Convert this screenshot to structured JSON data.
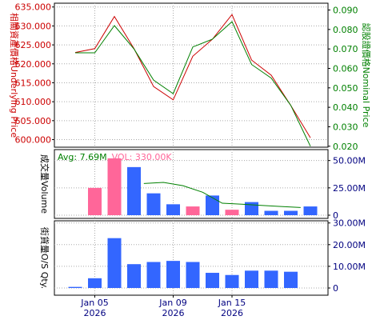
{
  "chart_data": [
    {
      "type": "line",
      "left_axis_label": "相關資產價格Underlying Price",
      "right_axis_label": "認股證價格Nominal Price",
      "left_ylim": [
        598,
        636
      ],
      "right_ylim": [
        0.0195,
        0.0935
      ],
      "left_ticks": [
        "635.000",
        "630.000",
        "625.000",
        "620.000",
        "615.000",
        "610.000",
        "605.000",
        "600.000"
      ],
      "left_tick_values": [
        635,
        630,
        625,
        620,
        615,
        610,
        605,
        600
      ],
      "right_ticks": [
        "0.090",
        "0.080",
        "0.070",
        "0.060",
        "0.050",
        "0.040",
        "0.030",
        "0.020"
      ],
      "right_tick_values": [
        0.09,
        0.08,
        0.07,
        0.06,
        0.05,
        0.04,
        0.03,
        0.02
      ],
      "grid": true,
      "series": [
        {
          "axis": "left",
          "color": "#cc0000",
          "values": [
            623,
            624,
            632.5,
            624,
            614,
            610.5,
            622,
            626.5,
            633,
            621,
            617,
            609,
            600.5
          ]
        },
        {
          "axis": "right",
          "color": "#008000",
          "values": [
            0.068,
            0.068,
            0.082,
            0.07,
            0.054,
            0.047,
            0.071,
            0.075,
            0.084,
            0.062,
            0.055,
            0.041,
            0.02
          ]
        }
      ]
    },
    {
      "type": "bar",
      "ylabel": "成交量Volume",
      "ylim": [
        0,
        60000000
      ],
      "right_ticks": [
        "50.00M",
        "25.00M",
        "0"
      ],
      "right_tick_values": [
        50000000,
        25000000,
        0
      ],
      "legend_avg": "Avg: 7.69M",
      "legend_vol": "VOL: 330.00K",
      "grid": true,
      "bars": [
        {
          "value": 25000000,
          "color": "#ff6699"
        },
        {
          "value": 52000000,
          "color": "#ff6699"
        },
        {
          "value": 44000000,
          "color": "#3366ff"
        },
        {
          "value": 20000000,
          "color": "#3366ff"
        },
        {
          "value": 10000000,
          "color": "#3366ff"
        },
        {
          "value": 8000000,
          "color": "#ff6699"
        },
        {
          "value": 18000000,
          "color": "#3366ff"
        },
        {
          "value": 5000000,
          "color": "#ff6699"
        },
        {
          "value": 12000000,
          "color": "#3366ff"
        },
        {
          "value": 4000000,
          "color": "#3366ff"
        },
        {
          "value": 4000000,
          "color": "#3366ff"
        },
        {
          "value": 8000000,
          "color": "#3366ff"
        }
      ],
      "avg_line": {
        "color": "#008000",
        "points": [
          [
            3.5,
            29000000
          ],
          [
            4.5,
            30000000
          ],
          [
            5.5,
            27000000
          ],
          [
            6.5,
            21000000
          ],
          [
            7.5,
            11000000
          ],
          [
            8.5,
            10000000
          ],
          [
            9.5,
            9000000
          ],
          [
            10.5,
            8000000
          ],
          [
            11.5,
            7000000
          ]
        ]
      }
    },
    {
      "type": "bar",
      "ylabel": "街貨量O/S Qty.",
      "ylim": [
        0,
        31000000
      ],
      "right_ticks": [
        "30.00M",
        "20.00M",
        "10.00M",
        "0"
      ],
      "right_tick_values": [
        30000000,
        20000000,
        10000000,
        0
      ],
      "grid": true,
      "bars": [
        {
          "value": 500000,
          "color": "#3366ff"
        },
        {
          "value": 4500000,
          "color": "#3366ff"
        },
        {
          "value": 23000000,
          "color": "#3366ff"
        },
        {
          "value": 11000000,
          "color": "#3366ff"
        },
        {
          "value": 12000000,
          "color": "#3366ff"
        },
        {
          "value": 12500000,
          "color": "#3366ff"
        },
        {
          "value": 12000000,
          "color": "#3366ff"
        },
        {
          "value": 7000000,
          "color": "#3366ff"
        },
        {
          "value": 6000000,
          "color": "#3366ff"
        },
        {
          "value": 8000000,
          "color": "#3366ff"
        },
        {
          "value": 8000000,
          "color": "#3366ff"
        },
        {
          "value": 7500000,
          "color": "#3366ff"
        }
      ]
    }
  ],
  "x_axis": {
    "labels": [
      {
        "index": 1,
        "line1": "Jan 05",
        "line2": "2026"
      },
      {
        "index": 5,
        "line1": "Jan 09",
        "line2": "2026"
      },
      {
        "index": 8,
        "line1": "Jan 15",
        "line2": "2026"
      }
    ]
  }
}
